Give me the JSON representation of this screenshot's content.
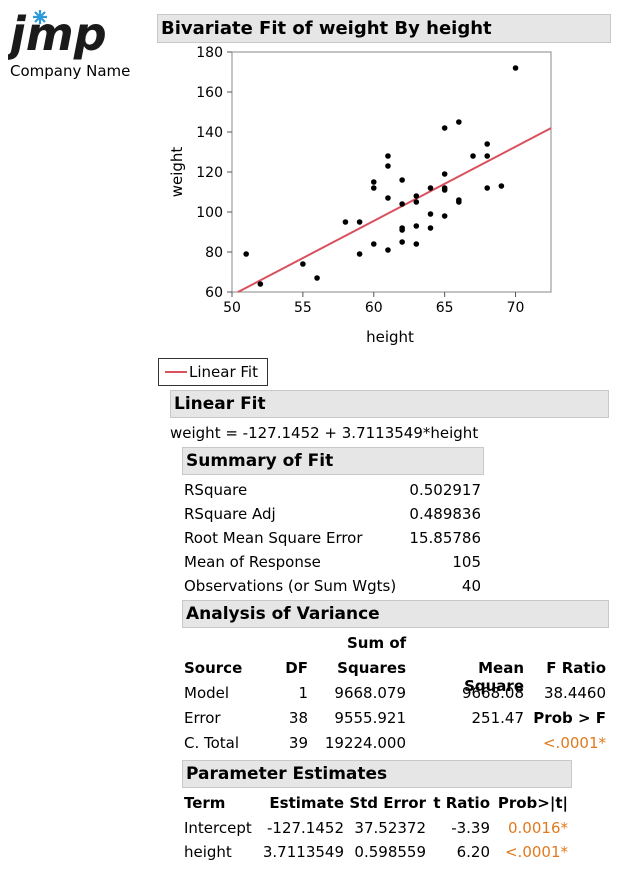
{
  "logo": {
    "text": "jmp",
    "company": "Company Name"
  },
  "report": {
    "title": "Bivariate Fit of weight By height",
    "legend_label": "Linear Fit",
    "linear_fit_header": "Linear Fit",
    "equation": "weight = -127.1452 + 3.7113549*height"
  },
  "chart_data": {
    "type": "scatter",
    "xlabel": "height",
    "ylabel": "weight",
    "xlim": [
      50,
      72.5
    ],
    "ylim": [
      60,
      180
    ],
    "xticks": [
      50,
      55,
      60,
      65,
      70
    ],
    "yticks": [
      60,
      80,
      100,
      120,
      140,
      160,
      180
    ],
    "fit": {
      "intercept": -127.1452,
      "slope": 3.7113549,
      "color": "#d9505f"
    },
    "points": [
      [
        51,
        79
      ],
      [
        52,
        64
      ],
      [
        55,
        74
      ],
      [
        56,
        67
      ],
      [
        58,
        95
      ],
      [
        59,
        79
      ],
      [
        59,
        95
      ],
      [
        60,
        115
      ],
      [
        60,
        112
      ],
      [
        60,
        84
      ],
      [
        61,
        128
      ],
      [
        61,
        123
      ],
      [
        61,
        107
      ],
      [
        61,
        81
      ],
      [
        62,
        116
      ],
      [
        62,
        104
      ],
      [
        62,
        92
      ],
      [
        62,
        91
      ],
      [
        62,
        85
      ],
      [
        63,
        105
      ],
      [
        63,
        93
      ],
      [
        63,
        84
      ],
      [
        64,
        112
      ],
      [
        64,
        99
      ],
      [
        64,
        92
      ],
      [
        65,
        142
      ],
      [
        65,
        119
      ],
      [
        65,
        112
      ],
      [
        65,
        111
      ],
      [
        65,
        98
      ],
      [
        66,
        145
      ],
      [
        66,
        106
      ],
      [
        66,
        105
      ],
      [
        67,
        128
      ],
      [
        68,
        134
      ],
      [
        68,
        128
      ],
      [
        68,
        112
      ],
      [
        69,
        113
      ],
      [
        70,
        172
      ],
      [
        63,
        108
      ]
    ]
  },
  "summary_of_fit": {
    "header": "Summary of Fit",
    "rows": [
      {
        "label": "RSquare",
        "value": "0.502917"
      },
      {
        "label": "RSquare Adj",
        "value": "0.489836"
      },
      {
        "label": "Root Mean Square Error",
        "value": "15.85786"
      },
      {
        "label": "Mean of Response",
        "value": "105"
      },
      {
        "label": "Observations (or Sum Wgts)",
        "value": "40"
      }
    ]
  },
  "anova": {
    "header": "Analysis of Variance",
    "col_source": "Source",
    "col_df": "DF",
    "col_ss_top": "Sum of",
    "col_ss": "Squares",
    "col_ms": "Mean Square",
    "col_f": "F Ratio",
    "prob_label": "Prob > F",
    "prob_value": "<.0001*",
    "rows": [
      {
        "source": "Model",
        "df": "1",
        "ss": "9668.079",
        "ms": "9668.08",
        "f": "38.4460"
      },
      {
        "source": "Error",
        "df": "38",
        "ss": "9555.921",
        "ms": "251.47",
        "f": ""
      },
      {
        "source": "C. Total",
        "df": "39",
        "ss": "19224.000",
        "ms": "",
        "f": ""
      }
    ]
  },
  "parameters": {
    "header": "Parameter Estimates",
    "columns": [
      "Term",
      "Estimate",
      "Std Error",
      "t Ratio",
      "Prob>|t|"
    ],
    "rows": [
      {
        "term": "Intercept",
        "estimate": "-127.1452",
        "stderr": "37.52372",
        "t": "-3.39",
        "p": "0.0016*"
      },
      {
        "term": "height",
        "estimate": "3.7113549",
        "stderr": "0.598559",
        "t": "6.20",
        "p": "<.0001*"
      }
    ]
  }
}
